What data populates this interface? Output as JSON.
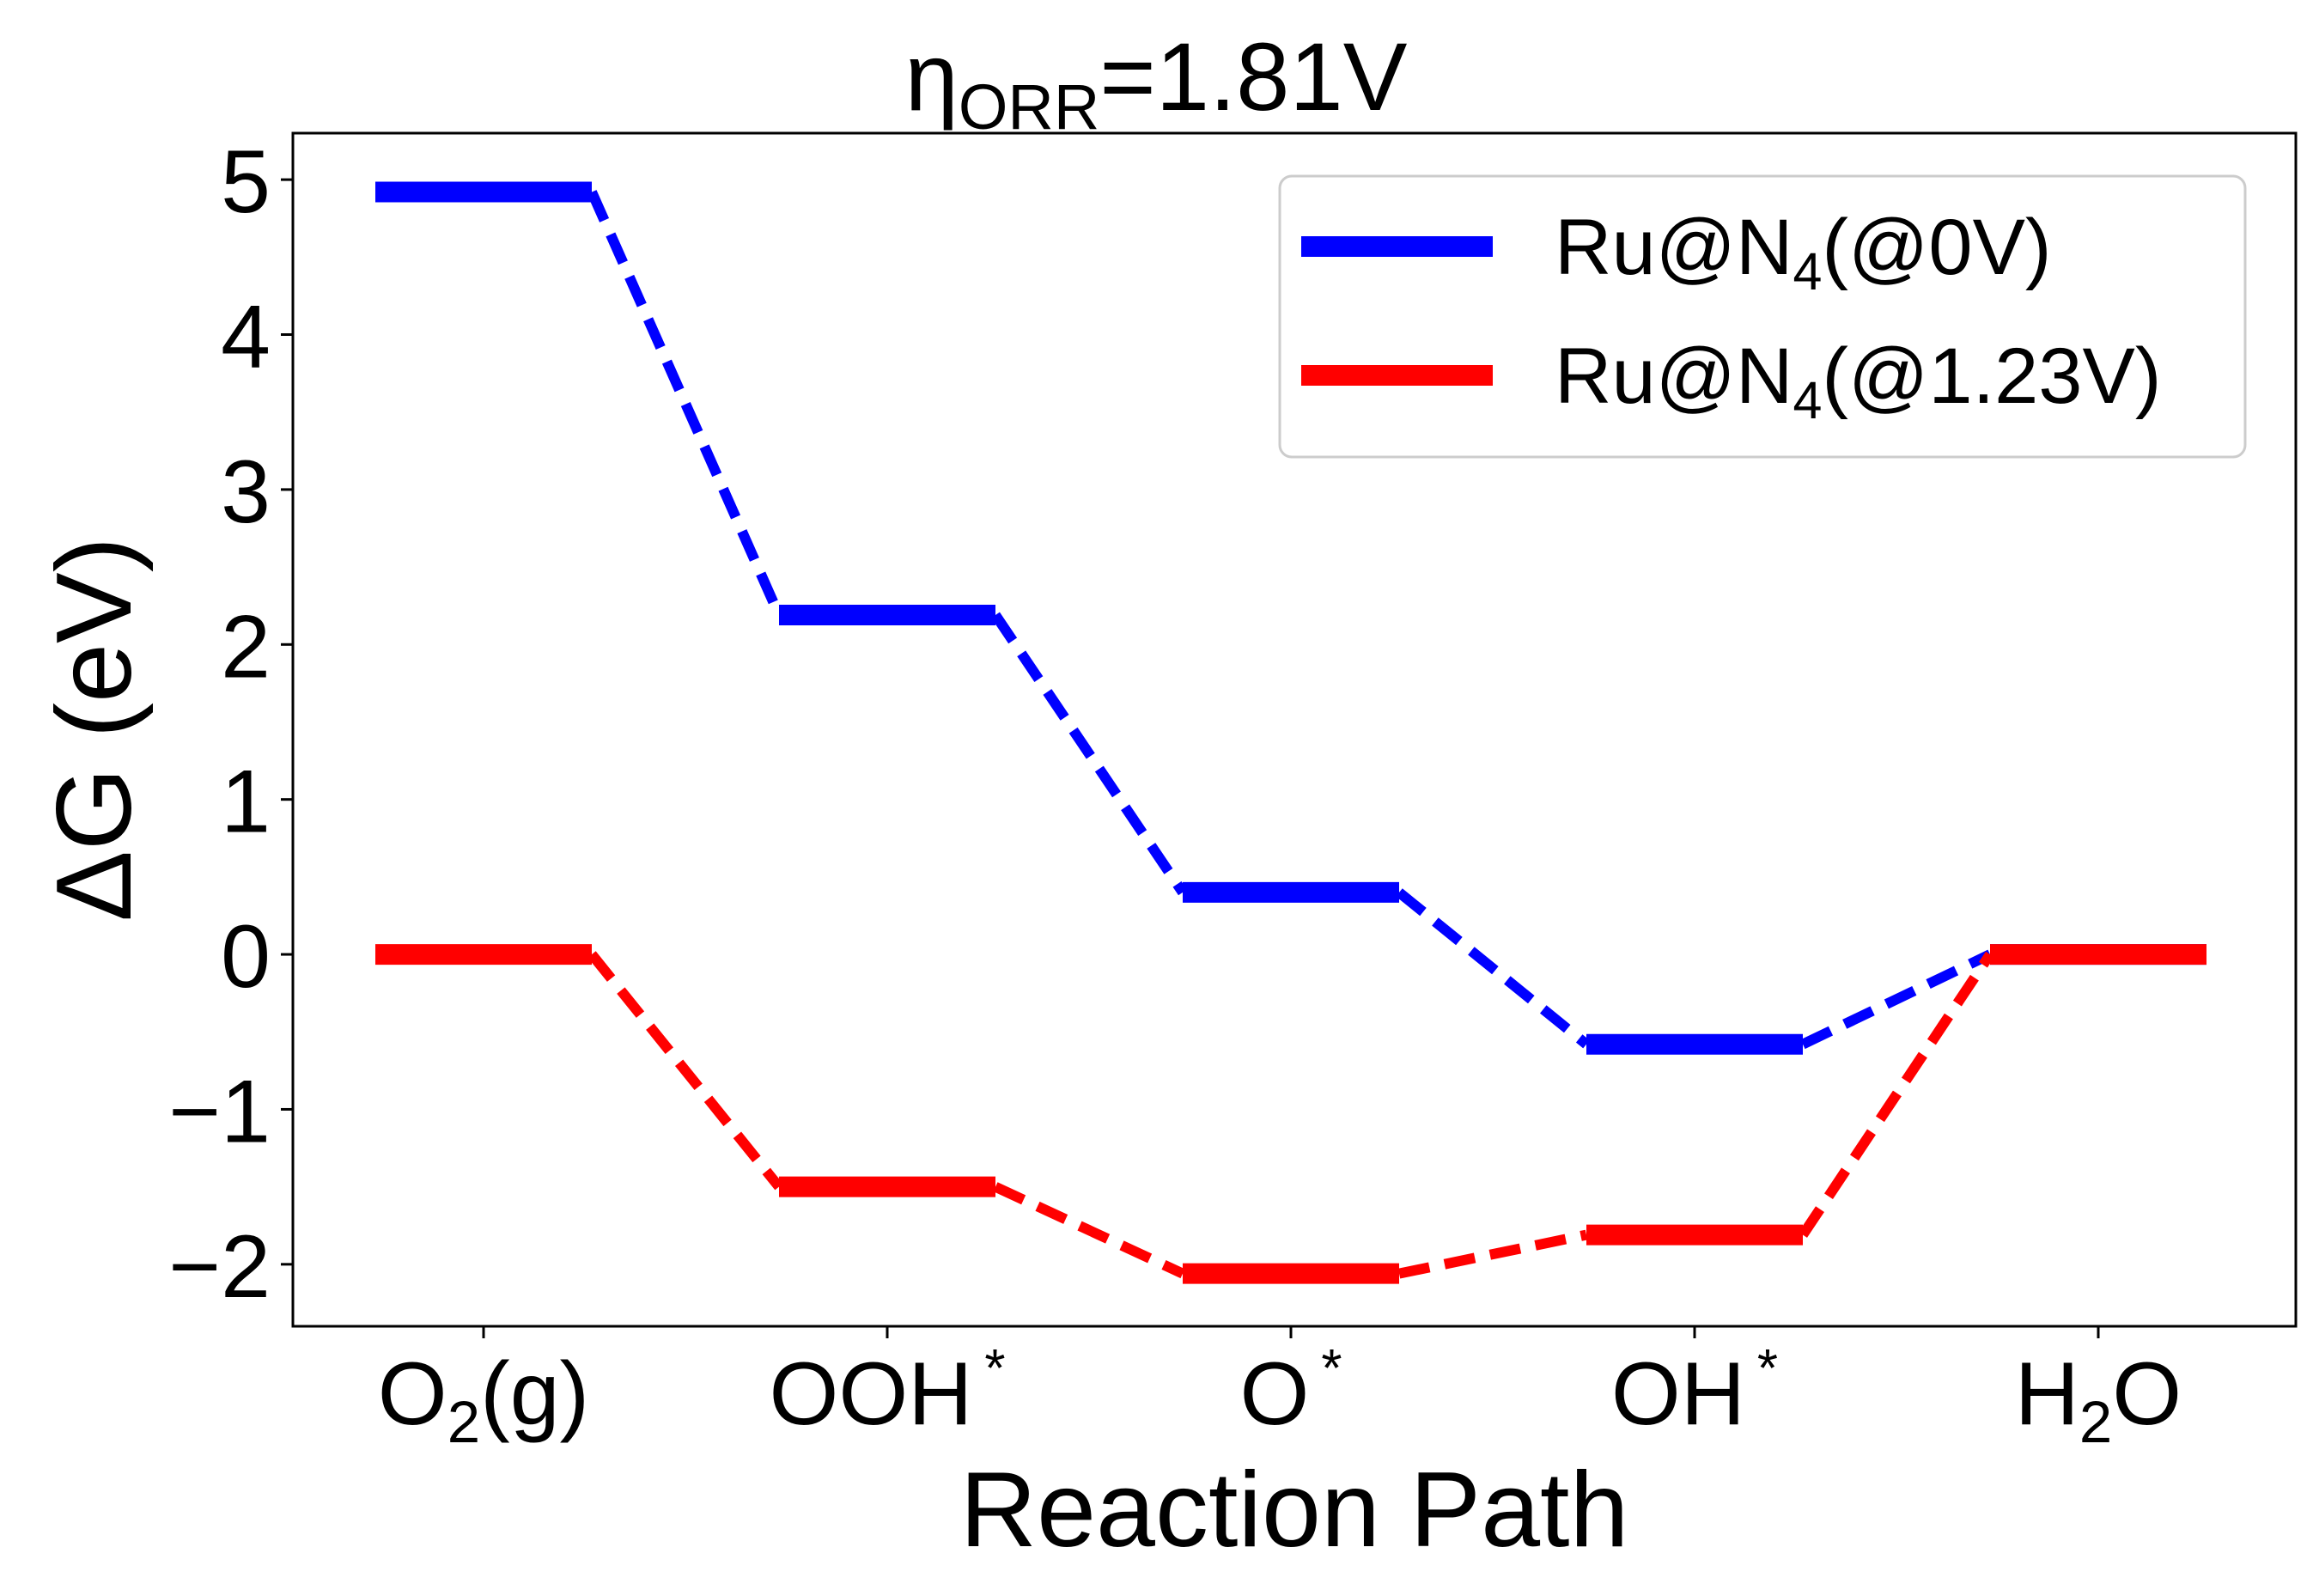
{
  "chart_data": {
    "type": "line",
    "title": {
      "main": "η",
      "sub": "ORR",
      "rest": "=1.81V"
    },
    "xlabel": "Reaction Path",
    "ylabel": "ΔG (eV)",
    "ylim": [
      -2.4,
      5.3
    ],
    "yticks": [
      {
        "value": 5,
        "label": "5"
      },
      {
        "value": 4,
        "label": "4"
      },
      {
        "value": 3,
        "label": "3"
      },
      {
        "value": 2,
        "label": "2"
      },
      {
        "value": 1,
        "label": "1"
      },
      {
        "value": 0,
        "label": "0"
      },
      {
        "value": -1,
        "label": "−1"
      },
      {
        "value": -2,
        "label": "−2"
      }
    ],
    "categories": [
      {
        "main": "O",
        "sub": "2",
        "rest": "(g)",
        "sup": ""
      },
      {
        "main": "OOH",
        "sub": "",
        "rest": "",
        "sup": "*"
      },
      {
        "main": "O",
        "sub": "",
        "rest": "",
        "sup": "*"
      },
      {
        "main": "OH",
        "sub": "",
        "rest": "",
        "sup": "*"
      },
      {
        "main": "H",
        "sub": "2",
        "rest": "O",
        "sup": ""
      }
    ],
    "series": [
      {
        "name": {
          "main": "Ru@N",
          "sub": "4",
          "rest": "(@0V)"
        },
        "color": "#0000ff",
        "values": [
          4.92,
          2.19,
          0.4,
          -0.58,
          0.0
        ]
      },
      {
        "name": {
          "main": "Ru@N",
          "sub": "4",
          "rest": "(@1.23V)"
        },
        "color": "#ff0000",
        "values": [
          0.0,
          -1.5,
          -2.06,
          -1.81,
          0.0
        ]
      }
    ],
    "legend": "top-right",
    "grid": false
  }
}
